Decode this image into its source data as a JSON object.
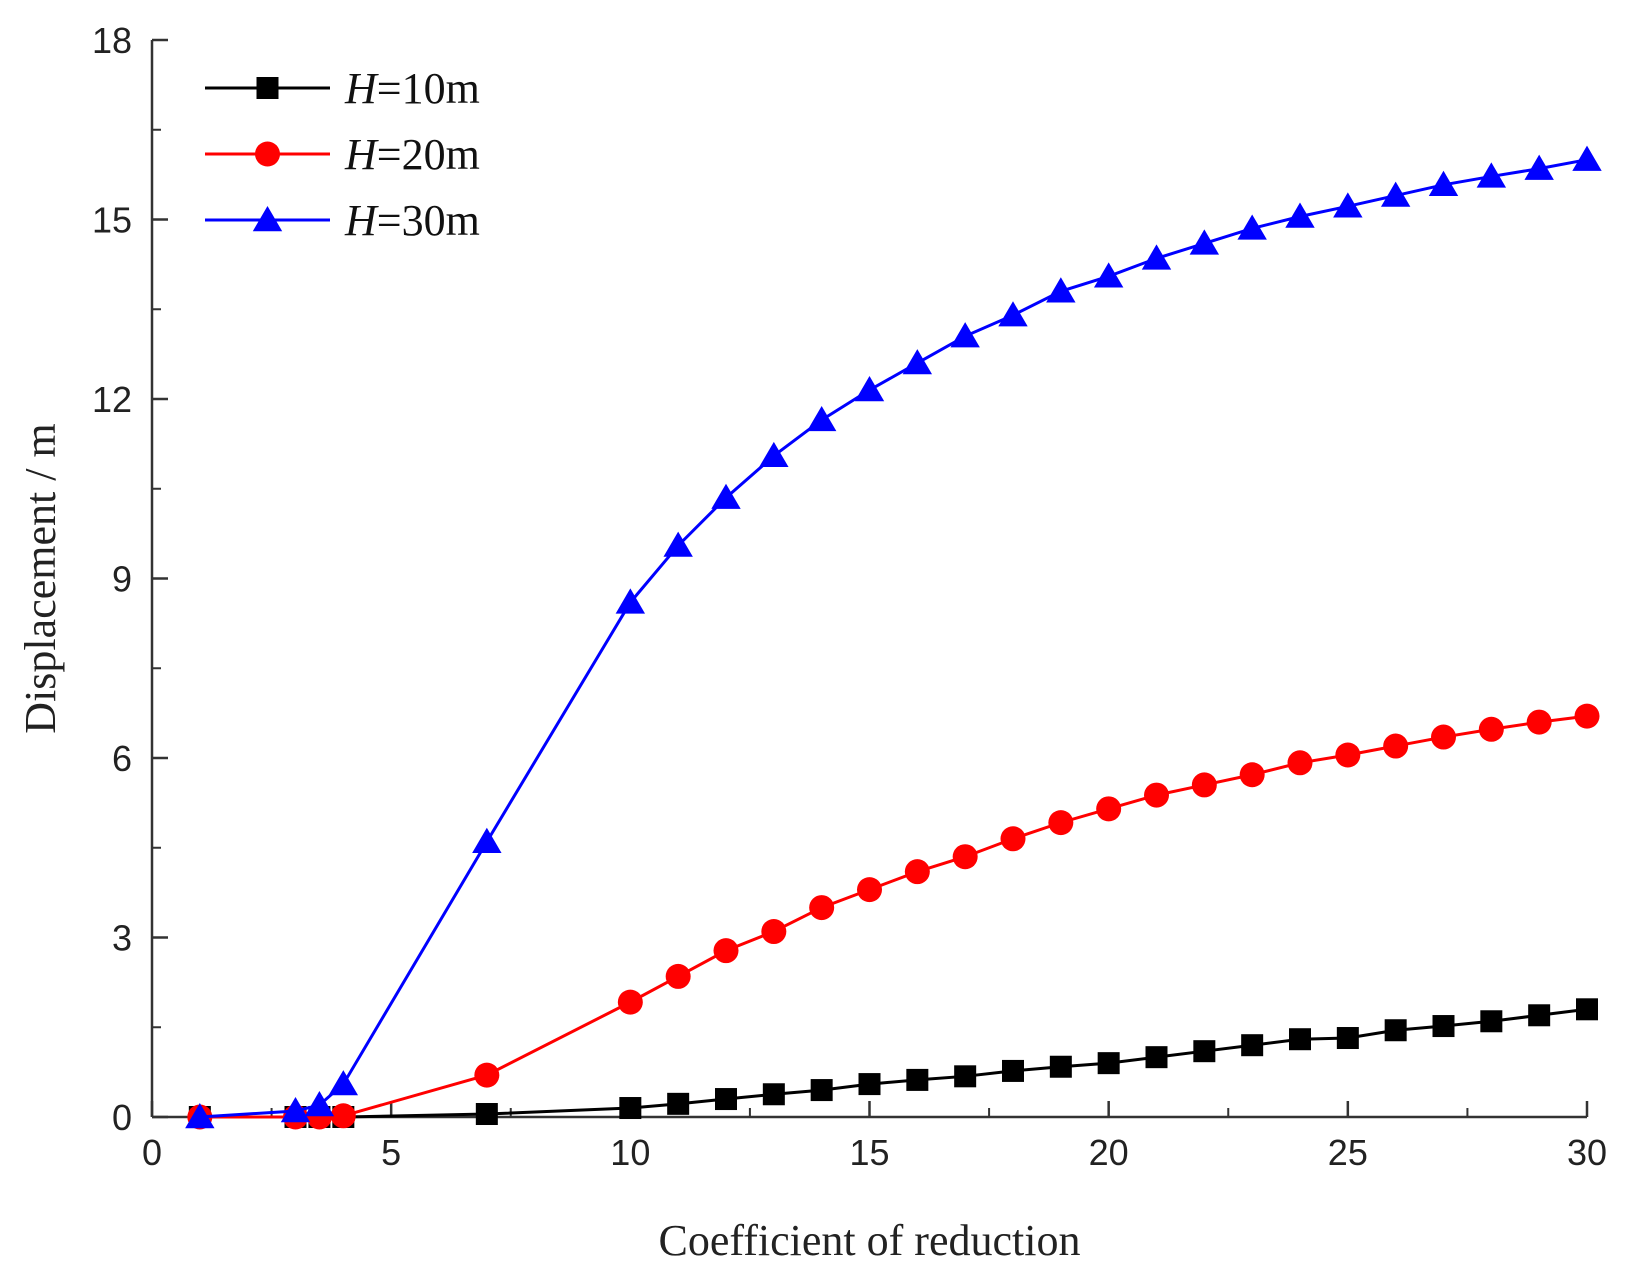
{
  "chart_data": {
    "type": "line",
    "title": "",
    "xlabel": "Coefficient of reduction",
    "ylabel": "Displacement / m",
    "xlim": [
      0,
      30
    ],
    "ylim": [
      0,
      18
    ],
    "xticks": [
      0,
      5,
      10,
      15,
      20,
      25,
      30
    ],
    "yticks": [
      0,
      3,
      6,
      9,
      12,
      15,
      18
    ],
    "xtick_labels": [
      "0",
      "5",
      "10",
      "15",
      "20",
      "25",
      "30"
    ],
    "ytick_labels": [
      "0",
      "3",
      "6",
      "9",
      "12",
      "15",
      "18"
    ],
    "grid": false,
    "legend_position": "top-left",
    "series": [
      {
        "name": "H=10m",
        "legend_var": "H",
        "legend_rest": "=10m",
        "color": "#000000",
        "marker": "square",
        "x": [
          1,
          3,
          3.5,
          4,
          7,
          10,
          11,
          12,
          13,
          14,
          15,
          16,
          17,
          18,
          19,
          20,
          21,
          22,
          23,
          24,
          25,
          26,
          27,
          28,
          29,
          30
        ],
        "y": [
          0,
          0,
          0,
          0,
          0.05,
          0.15,
          0.22,
          0.3,
          0.38,
          0.45,
          0.55,
          0.62,
          0.68,
          0.77,
          0.84,
          0.9,
          1.0,
          1.1,
          1.2,
          1.3,
          1.32,
          1.45,
          1.52,
          1.6,
          1.7,
          1.8
        ]
      },
      {
        "name": "H=20m",
        "legend_var": "H",
        "legend_rest": "=20m",
        "color": "#ff0000",
        "marker": "circle",
        "x": [
          1,
          3,
          3.5,
          4,
          7,
          10,
          11,
          12,
          13,
          14,
          15,
          16,
          17,
          18,
          19,
          20,
          21,
          22,
          23,
          24,
          25,
          26,
          27,
          28,
          29,
          30
        ],
        "y": [
          0,
          0,
          0,
          0.02,
          0.7,
          1.92,
          2.35,
          2.78,
          3.1,
          3.5,
          3.8,
          4.1,
          4.35,
          4.65,
          4.92,
          5.15,
          5.38,
          5.55,
          5.72,
          5.92,
          6.05,
          6.2,
          6.35,
          6.48,
          6.6,
          6.7
        ]
      },
      {
        "name": "H=30m",
        "legend_var": "H",
        "legend_rest": "=30m",
        "color": "#0000ff",
        "marker": "triangle",
        "x": [
          1,
          3,
          3.5,
          4,
          7,
          10,
          11,
          12,
          13,
          14,
          15,
          16,
          17,
          18,
          19,
          20,
          21,
          22,
          23,
          24,
          25,
          26,
          27,
          28,
          29,
          30
        ],
        "y": [
          0,
          0.1,
          0.2,
          0.55,
          4.6,
          8.6,
          9.55,
          10.35,
          11.05,
          11.65,
          12.15,
          12.6,
          13.05,
          13.4,
          13.8,
          14.05,
          14.35,
          14.6,
          14.85,
          15.05,
          15.22,
          15.4,
          15.58,
          15.72,
          15.85,
          16.0
        ]
      }
    ]
  }
}
